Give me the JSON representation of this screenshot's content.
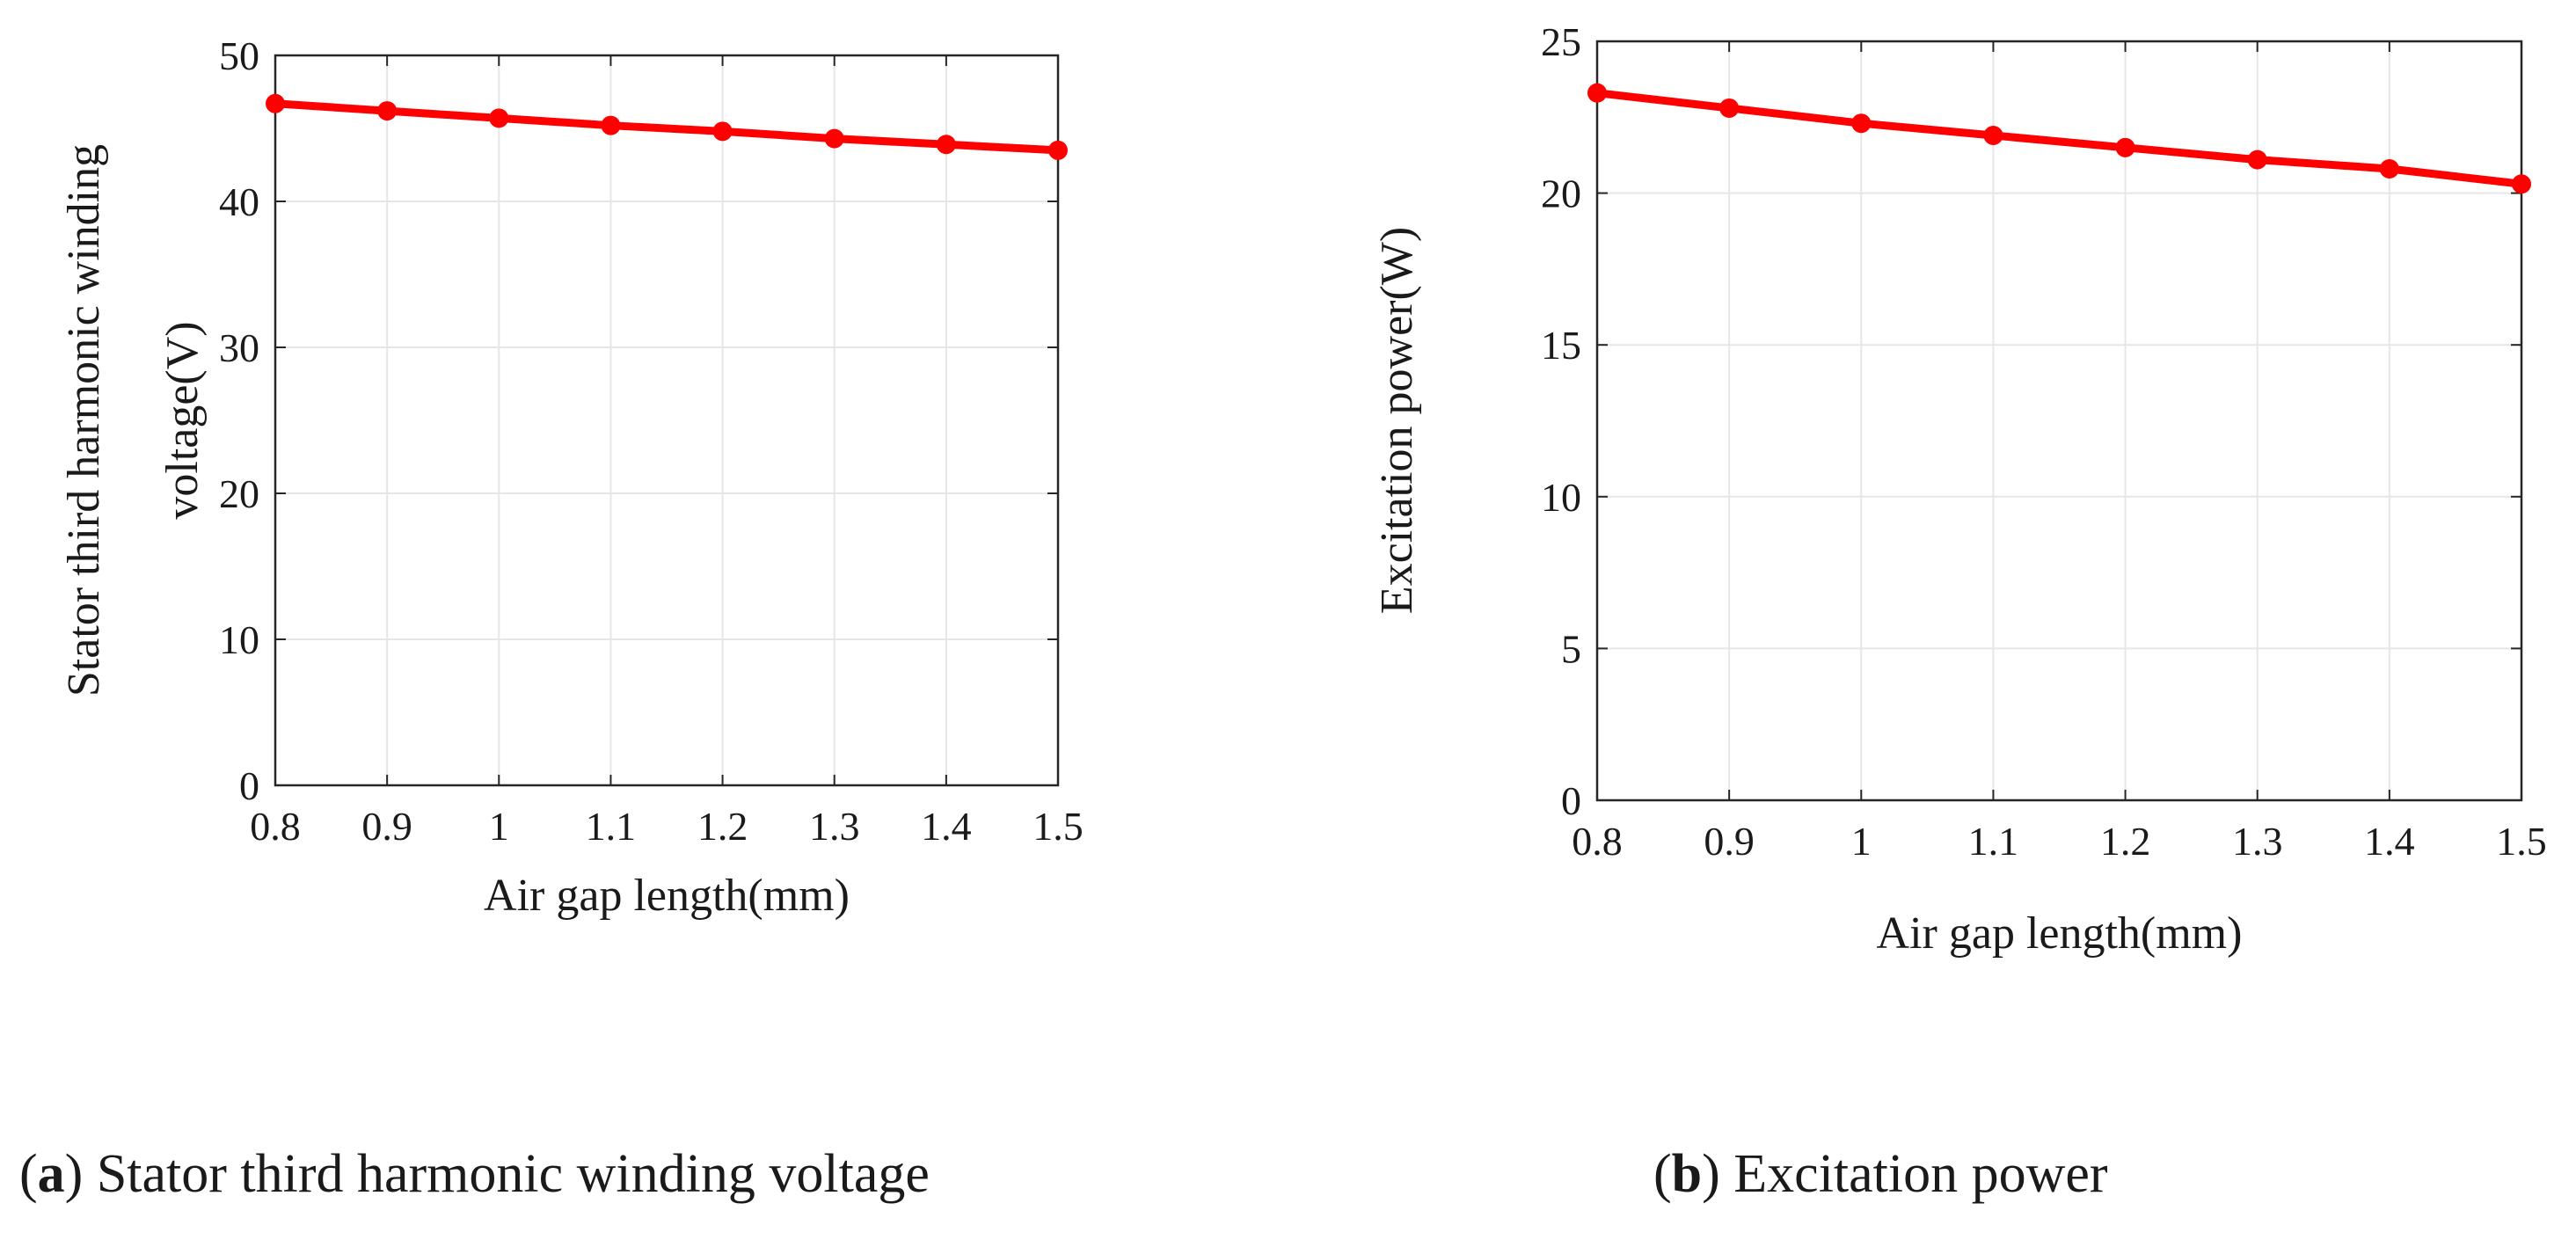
{
  "chart_data": [
    {
      "type": "line",
      "panel": "a",
      "x": [
        0.8,
        0.9,
        1.0,
        1.1,
        1.2,
        1.3,
        1.4,
        1.5
      ],
      "series": [
        {
          "name": "Stator third harmonic winding voltage",
          "values": [
            46.7,
            46.2,
            45.7,
            45.2,
            44.8,
            44.3,
            43.9,
            43.5
          ],
          "color": "#ff0000"
        }
      ],
      "xlim": [
        0.8,
        1.5
      ],
      "ylim": [
        0,
        50
      ],
      "xticks": [
        "0.8",
        "0.9",
        "1",
        "1.1",
        "1.2",
        "1.3",
        "1.4",
        "1.5"
      ],
      "yticks": [
        "0",
        "10",
        "20",
        "30",
        "40",
        "50"
      ],
      "xlabel": "Air gap length(mm)",
      "ylabel_lines": [
        "Stator third harmonic winding",
        "voltage(V)"
      ],
      "grid": true,
      "caption_letter": "a",
      "caption_text": "Stator third harmonic winding voltage"
    },
    {
      "type": "line",
      "panel": "b",
      "x": [
        0.8,
        0.9,
        1.0,
        1.1,
        1.2,
        1.3,
        1.4,
        1.5
      ],
      "series": [
        {
          "name": "Excitation power",
          "values": [
            23.3,
            22.8,
            22.3,
            21.9,
            21.5,
            21.1,
            20.8,
            20.3
          ],
          "color": "#ff0000"
        }
      ],
      "xlim": [
        0.8,
        1.5
      ],
      "ylim": [
        0,
        25
      ],
      "xticks": [
        "0.8",
        "0.9",
        "1",
        "1.1",
        "1.2",
        "1.3",
        "1.4",
        "1.5"
      ],
      "yticks": [
        "0",
        "5",
        "10",
        "15",
        "20",
        "25"
      ],
      "xlabel": "Air gap length(mm)",
      "ylabel_lines": [
        "Excitation power(W)"
      ],
      "grid": true,
      "caption_letter": "b",
      "caption_text": "Excitation power"
    }
  ]
}
